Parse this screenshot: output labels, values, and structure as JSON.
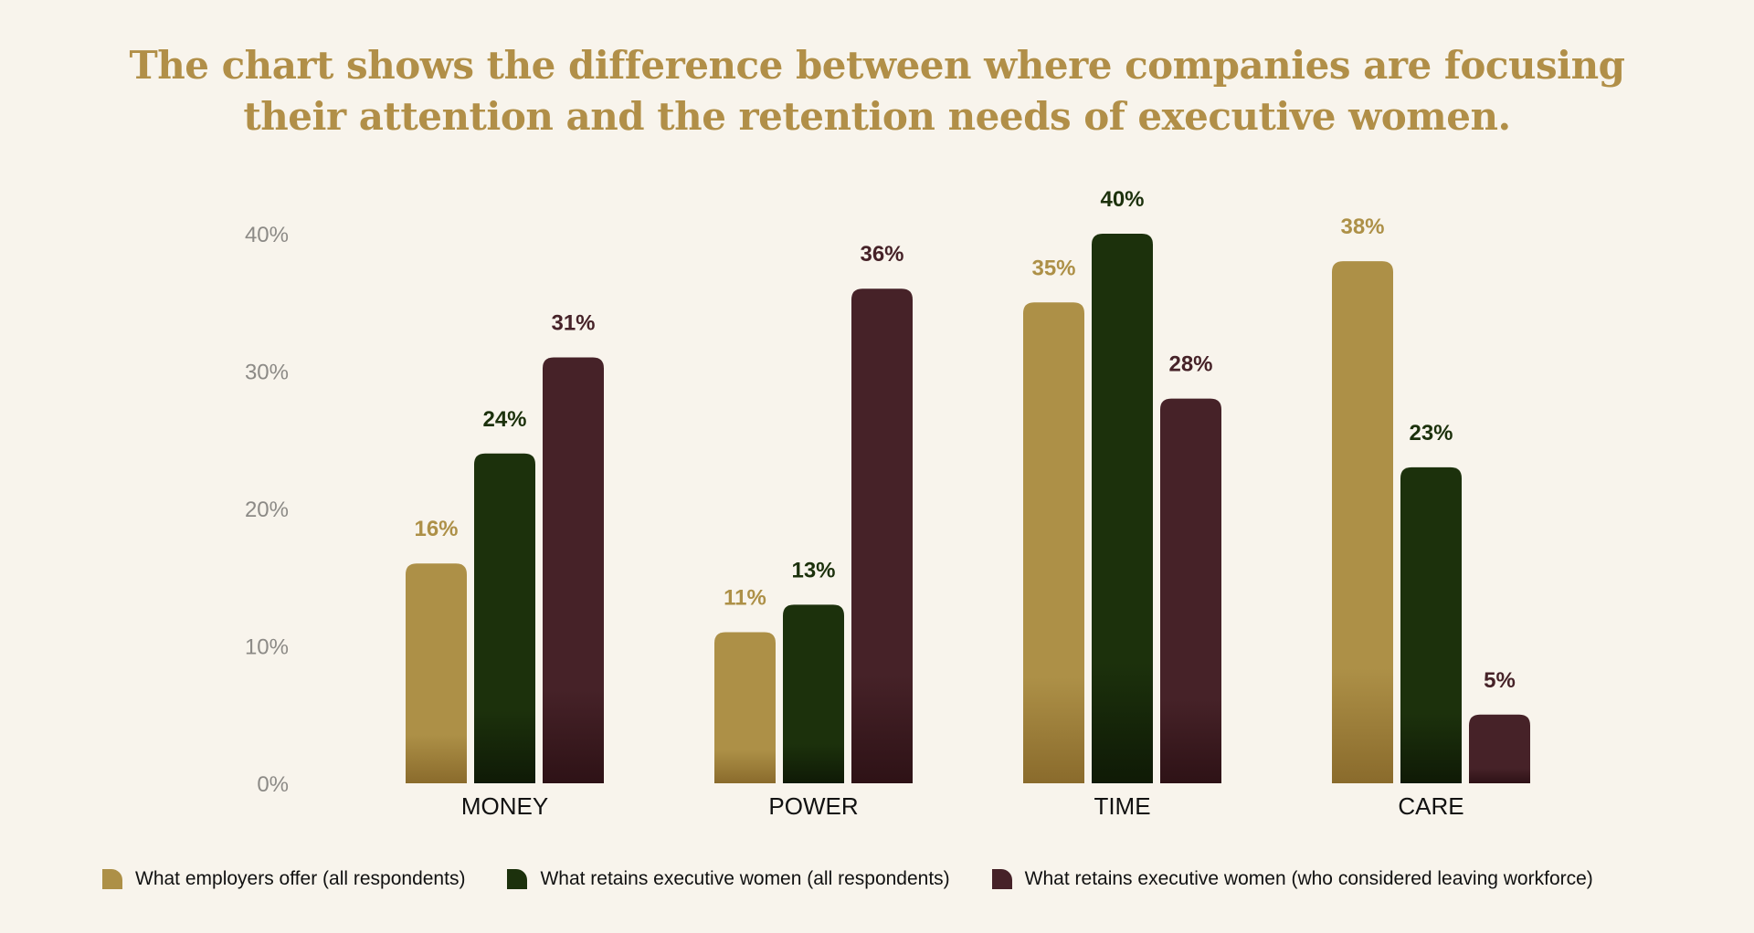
{
  "title_line1": "The chart shows the difference between where companies are focusing",
  "title_line2": "their attention and the retention needs of executive women.",
  "chart_data": {
    "type": "bar",
    "title": "The chart shows the difference between where companies are focusing their attention and the retention needs of executive women.",
    "categories": [
      "MONEY",
      "POWER",
      "TIME",
      "CARE"
    ],
    "series": [
      {
        "name": "What employers offer (all respondents)",
        "color": "#ad9047",
        "color_dark": "#8a6b2c",
        "values": [
          16,
          11,
          35,
          38
        ],
        "labels": [
          "16%",
          "11%",
          "35%",
          "38%"
        ]
      },
      {
        "name": "What retains executive women (all respondents)",
        "color": "#1c310c",
        "color_dark": "#0f1a06",
        "values": [
          24,
          13,
          40,
          23
        ],
        "labels": [
          "24%",
          "13%",
          "40%",
          "23%"
        ]
      },
      {
        "name": "What retains executive women (who considered leaving workforce)",
        "color": "#462228",
        "color_dark": "#2e1216",
        "values": [
          31,
          36,
          28,
          5
        ],
        "labels": [
          "31%",
          "36%",
          "28%",
          "5%"
        ]
      }
    ],
    "yticks": [
      0,
      10,
      20,
      30,
      40
    ],
    "ytick_labels": [
      "0%",
      "10%",
      "20%",
      "30%",
      "40%"
    ],
    "ylim": [
      0,
      40
    ],
    "grid": false,
    "legend": "bottom"
  }
}
